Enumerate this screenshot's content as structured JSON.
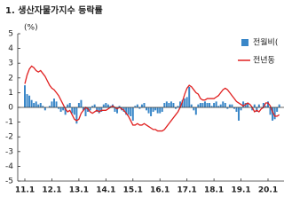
{
  "chart_data": {
    "type": "bar-line",
    "title": "1. 생산자물가지수 등락률",
    "y_unit": "(%)",
    "categories": [
      "11.1",
      null,
      null,
      null,
      null,
      null,
      null,
      null,
      null,
      null,
      null,
      null,
      "12.1",
      null,
      null,
      null,
      null,
      null,
      null,
      null,
      null,
      null,
      null,
      null,
      "13.1",
      null,
      null,
      null,
      null,
      null,
      null,
      null,
      null,
      null,
      null,
      null,
      "14.1",
      null,
      null,
      null,
      null,
      null,
      null,
      null,
      null,
      null,
      null,
      null,
      "15.1",
      null,
      null,
      null,
      null,
      null,
      null,
      null,
      null,
      null,
      null,
      null,
      "16.1",
      null,
      null,
      null,
      null,
      null,
      null,
      null,
      null,
      null,
      null,
      null,
      "17.1",
      null,
      null,
      null,
      null,
      null,
      null,
      null,
      null,
      null,
      null,
      null,
      "18.1",
      null,
      null,
      null,
      null,
      null,
      null,
      null,
      null,
      null,
      null,
      null,
      "19.1",
      null,
      null,
      null,
      null,
      null,
      null,
      null,
      null,
      null,
      null,
      null,
      "20.1",
      null,
      null,
      null,
      null,
      null
    ],
    "series": [
      {
        "name": "전월비(",
        "kind": "bar",
        "color": "#3a87c8",
        "values": [
          1.5,
          0.9,
          0.8,
          0.5,
          0.3,
          0.4,
          0.2,
          0.3,
          0.1,
          -0.2,
          0.0,
          0.1,
          0.4,
          0.6,
          0.4,
          -0.1,
          -0.3,
          -0.2,
          -0.5,
          0.2,
          0.3,
          -0.4,
          -0.5,
          -1.1,
          0.3,
          0.5,
          -0.2,
          -0.6,
          -0.3,
          -0.2,
          0.1,
          0.2,
          -0.3,
          -0.4,
          -0.3,
          0.2,
          0.3,
          0.2,
          0.1,
          0.2,
          -0.3,
          -0.4,
          0.1,
          -0.2,
          -0.3,
          -0.5,
          -0.5,
          -0.6,
          -0.9,
          0.1,
          0.2,
          -0.1,
          0.2,
          0.3,
          -0.2,
          -0.4,
          -0.6,
          -0.3,
          -0.2,
          -0.4,
          -0.4,
          -0.3,
          0.3,
          0.4,
          0.3,
          0.4,
          0.3,
          -0.1,
          0.1,
          0.4,
          0.5,
          0.6,
          0.7,
          1.4,
          0.2,
          -0.2,
          -0.5,
          0.2,
          0.3,
          0.3,
          0.4,
          0.3,
          0.3,
          0.1,
          0.3,
          0.4,
          0.1,
          0.2,
          0.4,
          0.3,
          -0.1,
          0.2,
          0.2,
          -0.1,
          -0.3,
          -0.9,
          -0.2,
          0.4,
          0.3,
          0.3,
          0.0,
          -0.2,
          0.2,
          -0.3,
          0.2,
          0.0,
          0.3,
          0.1,
          0.4,
          -0.5,
          -0.9,
          -0.8,
          -0.3,
          0.2
        ]
      },
      {
        "name": "전년동",
        "kind": "line",
        "color": "#e02020",
        "values": [
          1.6,
          2.2,
          2.6,
          2.8,
          2.7,
          2.5,
          2.4,
          2.5,
          2.3,
          2.1,
          1.8,
          1.5,
          1.3,
          1.2,
          1.0,
          0.8,
          0.5,
          0.2,
          -0.1,
          -0.3,
          -0.2,
          -0.5,
          -0.8,
          -0.9,
          -0.8,
          -0.4,
          -0.2,
          0.0,
          -0.1,
          -0.3,
          -0.4,
          -0.3,
          -0.2,
          -0.3,
          -0.2,
          -0.2,
          -0.2,
          -0.1,
          0.0,
          0.1,
          0.0,
          -0.1,
          0.0,
          -0.1,
          -0.2,
          -0.4,
          -0.6,
          -0.9,
          -1.2,
          -1.2,
          -1.1,
          -1.2,
          -1.2,
          -1.1,
          -1.2,
          -1.3,
          -1.4,
          -1.5,
          -1.5,
          -1.6,
          -1.6,
          -1.6,
          -1.5,
          -1.3,
          -1.1,
          -0.9,
          -0.7,
          -0.5,
          -0.3,
          0.0,
          0.4,
          0.9,
          1.3,
          1.5,
          1.4,
          1.2,
          1.0,
          0.9,
          0.6,
          0.5,
          0.5,
          0.6,
          0.6,
          0.6,
          0.6,
          0.7,
          0.8,
          1.0,
          1.2,
          1.3,
          1.2,
          1.0,
          0.8,
          0.6,
          0.4,
          0.3,
          0.2,
          0.1,
          0.2,
          0.3,
          0.2,
          0.0,
          -0.3,
          -0.2,
          -0.3,
          -0.1,
          0.0,
          0.3,
          0.3,
          0.1,
          -0.3,
          -0.6,
          -0.6,
          -0.5
        ]
      }
    ],
    "ylim": [
      -5,
      5
    ],
    "yticks": [
      -5,
      -4,
      -3,
      -2,
      -1,
      0,
      1,
      2,
      3,
      4,
      5
    ]
  }
}
